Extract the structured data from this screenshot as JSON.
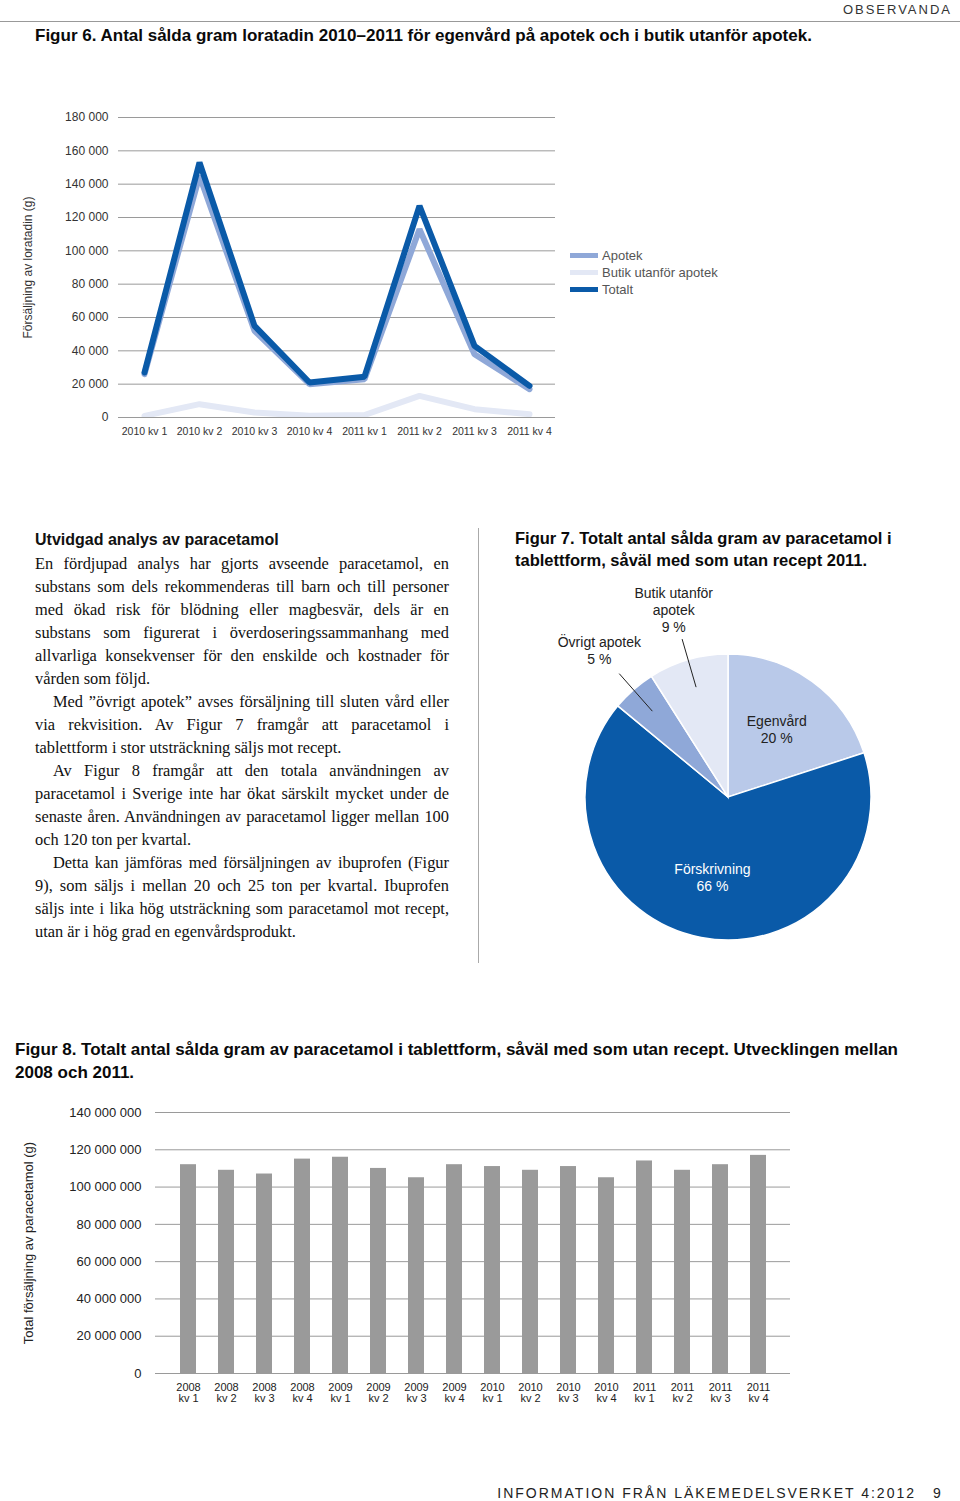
{
  "header": "OBSERVANDA",
  "chart_data": [
    {
      "type": "line",
      "title": "Figur 6. Antal sålda gram loratadin 2010–2011 för egenvård på apotek och i butik utanför apotek.",
      "y_label": "Försäljning av loratadin (g)",
      "categories": [
        "2010 kv 1",
        "2010 kv 2",
        "2010 kv 3",
        "2010 kv 4",
        "2011 kv 1",
        "2011 kv 2",
        "2011 kv 3",
        "2011 kv 4"
      ],
      "series": [
        {
          "name": "Apotek",
          "color": "#8fa8d8",
          "values": [
            26000,
            145000,
            52000,
            20000,
            23000,
            113000,
            38000,
            17000
          ]
        },
        {
          "name": "Butik utanför apotek",
          "color": "#e3e8f5",
          "values": [
            1000,
            8000,
            3000,
            1000,
            1500,
            13000,
            5000,
            2000
          ]
        },
        {
          "name": "Totalt",
          "color": "#0a5aa8",
          "values": [
            27000,
            153000,
            55000,
            21000,
            24500,
            127000,
            43000,
            19000
          ]
        }
      ],
      "ylim": [
        0,
        180000
      ],
      "yticks": [
        0,
        {
          "value": 20000,
          "label": "20 000"
        },
        {
          "value": 40000,
          "label": "40 000"
        },
        {
          "value": 60000,
          "label": "60 000"
        },
        {
          "value": 80000,
          "label": "80 000"
        },
        {
          "value": 100000,
          "label": "100 000"
        },
        {
          "value": 120000,
          "label": "120 000"
        },
        {
          "value": 140000,
          "label": "140 000"
        },
        {
          "value": 160000,
          "label": "160 000"
        },
        {
          "value": 180000,
          "label": "180 000"
        }
      ],
      "grid": true,
      "legend": "right"
    },
    {
      "type": "pie",
      "title": "Figur 7. Totalt antal sålda gram av paracetamol i tablettform, såväl med som utan recept 2011.",
      "categories": [
        "Egenvård",
        "Förskrivning",
        "Övrigt apotek",
        "Butik utanför apotek"
      ],
      "values": [
        20,
        66,
        5,
        9
      ],
      "value_labels": [
        "20 %",
        "66 %",
        "5 %",
        "9 %"
      ],
      "colors": [
        "#b9c9e9",
        "#0a5aa8",
        "#8fa8d8",
        "#e3e8f5"
      ],
      "data_labels": true
    },
    {
      "type": "bar",
      "title": "Figur 8. Totalt antal sålda gram av paracetamol i tablettform, såväl med som utan recept. Utvecklingen mellan 2008 och 2011.",
      "y_label": "Total försäljning av paracetamol (g)",
      "categories": [
        "2008 kv 1",
        "2008 kv 2",
        "2008 kv 3",
        "2008 kv 4",
        "2009 kv 1",
        "2009 kv 2",
        "2009 kv 3",
        "2009 kv 4",
        "2010 kv 1",
        "2010 kv 2",
        "2010 kv 3",
        "2010 kv 4",
        "2011 kv 1",
        "2011 kv 2",
        "2011 kv 3",
        "2011 kv 4"
      ],
      "values": [
        112000000,
        109000000,
        107000000,
        115000000,
        116000000,
        110000000,
        105000000,
        112000000,
        111000000,
        109000000,
        111000000,
        105000000,
        114000000,
        109000000,
        112000000,
        117000000
      ],
      "color": "#9a9a9a",
      "ylim": [
        0,
        140000000
      ],
      "yticks": [
        0,
        {
          "value": 20000000,
          "label": "20 000 000"
        },
        {
          "value": 40000000,
          "label": "40 000 000"
        },
        {
          "value": 60000000,
          "label": "60 000 000"
        },
        {
          "value": 80000000,
          "label": "80 000 000"
        },
        {
          "value": 100000000,
          "label": "100 000 000"
        },
        {
          "value": 120000000,
          "label": "120 000 000"
        },
        {
          "value": 140000000,
          "label": "140 000 000"
        }
      ],
      "grid": true
    }
  ],
  "article": {
    "heading": "Utvidgad analys av paracetamol",
    "paragraphs": [
      "En fördjupad analys har gjorts avseende paracetamol, en substans som dels rekommenderas till barn och till personer med ökad risk för blödning eller magbesvär, dels är en substans som figurerat i överdoseringssammanhang med allvarliga konsekvenser för den enskilde och kostnader för vården som följd.",
      "Med ”övrigt apotek” avses försäljning till sluten vård eller via rekvisition. Av Figur 7 framgår att paracetamol i tablettform i stor utsträckning säljs mot recept.",
      "Av Figur 8 framgår att den totala användningen av paracetamol i Sverige inte har ökat särskilt mycket under de senaste åren. Användningen av paracetamol ligger mellan 100 och 120 ton per kvartal.",
      "Detta kan jämföras med försäljningen av ibuprofen (Figur 9), som säljs i mellan 20 och 25 ton per kvartal. Ibuprofen säljs inte i lika hög utsträckning som paracetamol mot recept, utan är i hög grad en egenvårdsprodukt."
    ]
  },
  "footer": {
    "text": "INFORMATION FRÅN LÄKEMEDELSVERKET 4:2012",
    "page": 9
  }
}
